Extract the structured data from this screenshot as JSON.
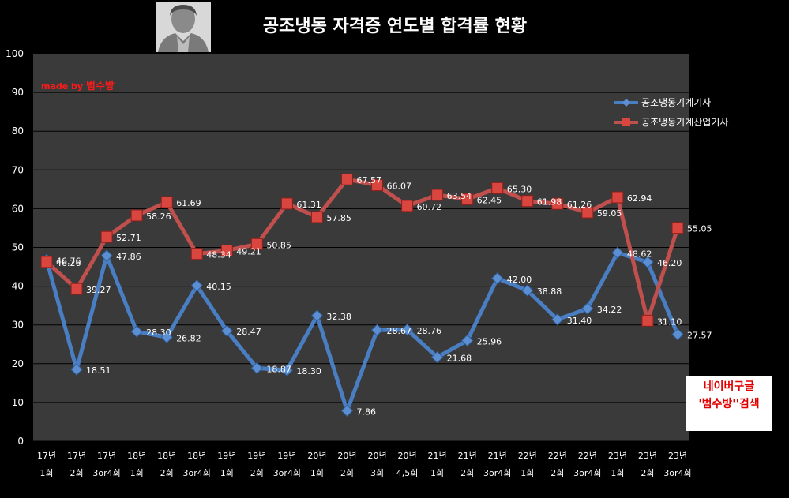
{
  "made_by": {
    "prefix": "made by ",
    "name": "범수방"
  },
  "promo": {
    "line1": "네이버구글",
    "line2": "'범수방''검색"
  },
  "colors": {
    "series1": "#4a7ec2",
    "series2": "#c0504d",
    "plot_bg": "#3a3a3a",
    "grid": "#000000"
  },
  "chart_data": {
    "type": "line",
    "title": "공조냉동 자격증 연도별 합격률 현황",
    "xlabel": "",
    "ylabel": "",
    "ylim": [
      0,
      100
    ],
    "yticks": [
      0,
      10,
      20,
      30,
      40,
      50,
      60,
      70,
      80,
      90,
      100
    ],
    "grid": true,
    "legend": "right",
    "categories": [
      [
        "17년",
        "1회"
      ],
      [
        "17년",
        "2회"
      ],
      [
        "17년",
        "3or4회"
      ],
      [
        "18년",
        "1회"
      ],
      [
        "18년",
        "2회"
      ],
      [
        "18년",
        "3or4회"
      ],
      [
        "19년",
        "1회"
      ],
      [
        "19년",
        "2회"
      ],
      [
        "19년",
        "3or4회"
      ],
      [
        "20년",
        "1회"
      ],
      [
        "20년",
        "2회"
      ],
      [
        "20년",
        "3회"
      ],
      [
        "20년",
        "4,5회"
      ],
      [
        "21년",
        "1회"
      ],
      [
        "21년",
        "2회"
      ],
      [
        "21년",
        "3or4회"
      ],
      [
        "22년",
        "1회"
      ],
      [
        "22년",
        "2회"
      ],
      [
        "22년",
        "3or4회"
      ],
      [
        "23년",
        "1회"
      ],
      [
        "23년",
        "2회"
      ],
      [
        "23년",
        "3or4회"
      ]
    ],
    "series": [
      {
        "name": "공조냉동기계기사",
        "values": [
          46.76,
          18.51,
          47.86,
          28.3,
          26.82,
          40.15,
          28.47,
          18.87,
          18.3,
          32.38,
          7.86,
          28.67,
          28.76,
          21.68,
          25.96,
          42.0,
          38.88,
          31.4,
          34.22,
          48.62,
          46.2,
          27.57
        ],
        "labels": [
          "46.76",
          "18.51",
          "47.86",
          "28.30",
          "26.82",
          "40.15",
          "28.47",
          "18.87",
          "18.30",
          "32.38",
          "7.86",
          "28.67",
          "28.76",
          "21.68",
          "25.96",
          "42.00",
          "38.88",
          "31.40",
          "34.22",
          "48.62",
          "46.20",
          "27.57"
        ]
      },
      {
        "name": "공조냉동기계산업기사",
        "values": [
          46.26,
          39.27,
          52.71,
          58.26,
          61.69,
          48.34,
          49.21,
          50.85,
          61.31,
          57.85,
          67.57,
          66.07,
          60.72,
          63.54,
          62.45,
          65.3,
          61.98,
          61.26,
          59.05,
          62.94,
          31.1,
          55.05
        ],
        "labels": [
          "46.26",
          "39.27",
          "52.71",
          "58.26",
          "61.69",
          "48.34",
          "49.21",
          "50.85",
          "61.31",
          "57.85",
          "67.57",
          "66.07",
          "60.72",
          "63.54",
          "62.45",
          "65.30",
          "61.98",
          "61.26",
          "59.05",
          "62.94",
          "31.10",
          "55.05"
        ]
      }
    ]
  }
}
